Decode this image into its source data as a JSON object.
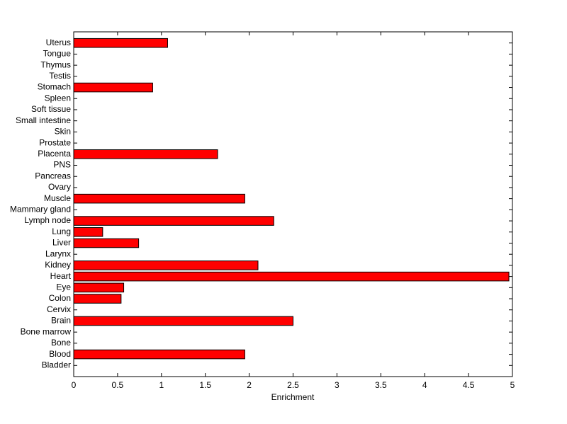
{
  "chart_data": {
    "type": "barh",
    "x_label": "Enrichment",
    "categories": [
      "Bladder",
      "Blood",
      "Bone",
      "Bone marrow",
      "Brain",
      "Cervix",
      "Colon",
      "Eye",
      "Heart",
      "Kidney",
      "Larynx",
      "Liver",
      "Lung",
      "Lymph node",
      "Mammary gland",
      "Muscle",
      "Ovary",
      "Pancreas",
      "PNS",
      "Placenta",
      "Prostate",
      "Skin",
      "Small intestine",
      "Soft tissue",
      "Spleen",
      "Stomach",
      "Testis",
      "Thymus",
      "Tongue",
      "Uterus"
    ],
    "values": [
      0,
      1.95,
      0,
      0,
      2.5,
      0,
      0.54,
      0.57,
      4.96,
      2.1,
      0,
      0.74,
      0.33,
      2.28,
      0,
      1.95,
      0,
      0,
      0,
      1.64,
      0,
      0,
      0,
      0,
      0,
      0.9,
      0,
      0,
      0,
      1.07
    ],
    "color": "#ff0000",
    "xlim": [
      0,
      5
    ],
    "xticks": [
      0,
      0.5,
      1,
      1.5,
      2,
      2.5,
      3,
      3.5,
      4,
      4.5,
      5
    ]
  }
}
